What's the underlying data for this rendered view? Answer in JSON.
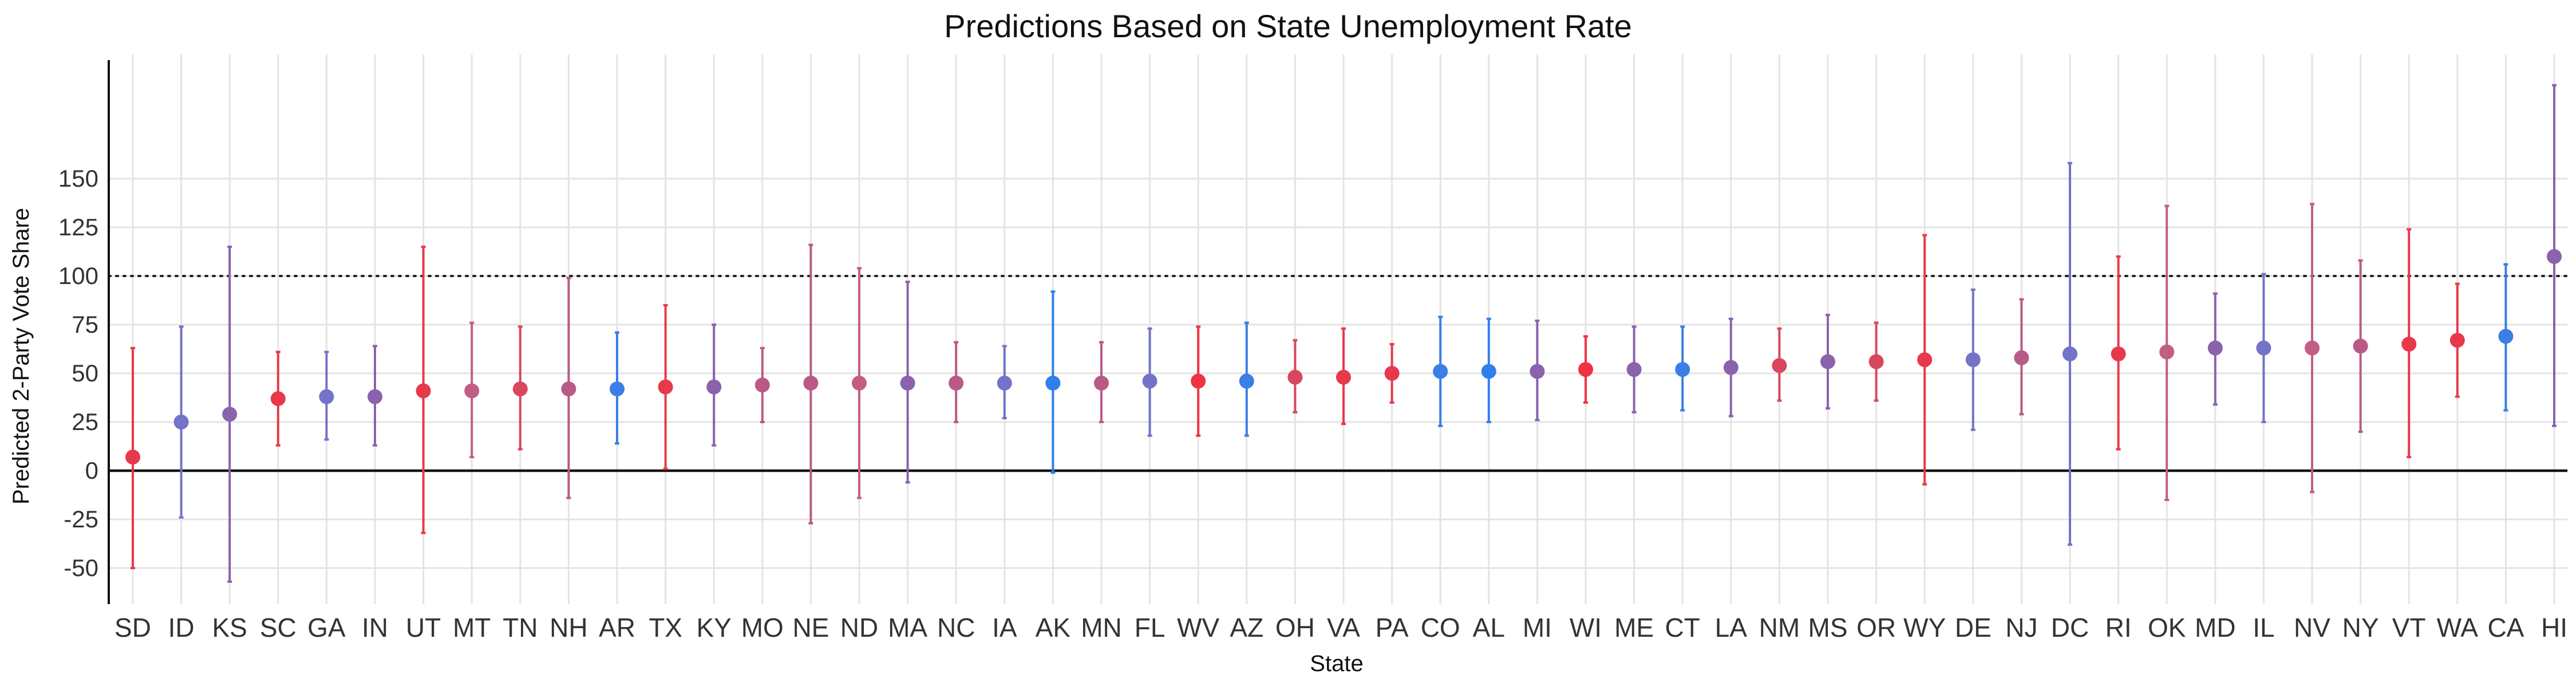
{
  "chart_data": {
    "type": "scatter",
    "title": "Predictions Based on State Unemployment Rate",
    "xlabel": "State",
    "ylabel": "Predicted 2-Party Vote Share",
    "ylim": [
      -60,
      210
    ],
    "yticks": [
      -50,
      -25,
      0,
      25,
      50,
      75,
      100,
      125,
      150
    ],
    "reference_lines": [
      {
        "y": 0,
        "style": "solid"
      },
      {
        "y": 100,
        "style": "dotted"
      }
    ],
    "grid": true,
    "legend": "none",
    "points": [
      {
        "state": "SD",
        "y": 7,
        "lower": -50,
        "upper": 63,
        "color": "#e8394a"
      },
      {
        "state": "ID",
        "y": 25,
        "lower": -24,
        "upper": 74,
        "color": "#7373c9"
      },
      {
        "state": "KS",
        "y": 29,
        "lower": -57,
        "upper": 115,
        "color": "#8a62ad"
      },
      {
        "state": "SC",
        "y": 37,
        "lower": 13,
        "upper": 61,
        "color": "#e8394a"
      },
      {
        "state": "GA",
        "y": 38,
        "lower": 16,
        "upper": 61,
        "color": "#7373c9"
      },
      {
        "state": "IN",
        "y": 38,
        "lower": 13,
        "upper": 64,
        "color": "#8a62ad"
      },
      {
        "state": "UT",
        "y": 41,
        "lower": -32,
        "upper": 115,
        "color": "#e8394a"
      },
      {
        "state": "MT",
        "y": 41,
        "lower": 7,
        "upper": 76,
        "color": "#c25e84"
      },
      {
        "state": "TN",
        "y": 42,
        "lower": 11,
        "upper": 74,
        "color": "#d8475e"
      },
      {
        "state": "NH",
        "y": 42,
        "lower": -14,
        "upper": 99,
        "color": "#b95a86"
      },
      {
        "state": "AR",
        "y": 42,
        "lower": 14,
        "upper": 71,
        "color": "#3a7ee6"
      },
      {
        "state": "TX",
        "y": 43,
        "lower": 1,
        "upper": 85,
        "color": "#e8394a"
      },
      {
        "state": "KY",
        "y": 43,
        "lower": 13,
        "upper": 75,
        "color": "#8a62ad"
      },
      {
        "state": "MO",
        "y": 44,
        "lower": 25,
        "upper": 63,
        "color": "#b95a86"
      },
      {
        "state": "NE",
        "y": 45,
        "lower": -27,
        "upper": 116,
        "color": "#b95a86"
      },
      {
        "state": "ND",
        "y": 45,
        "lower": -14,
        "upper": 104,
        "color": "#c25e84"
      },
      {
        "state": "MA",
        "y": 45,
        "lower": -6,
        "upper": 97,
        "color": "#8a62ad"
      },
      {
        "state": "NC",
        "y": 45,
        "lower": 25,
        "upper": 66,
        "color": "#b95a86"
      },
      {
        "state": "IA",
        "y": 45,
        "lower": 27,
        "upper": 64,
        "color": "#7373c9"
      },
      {
        "state": "AK",
        "y": 45,
        "lower": -1,
        "upper": 92,
        "color": "#2f80ed"
      },
      {
        "state": "MN",
        "y": 45,
        "lower": 25,
        "upper": 66,
        "color": "#b95a86"
      },
      {
        "state": "FL",
        "y": 46,
        "lower": 18,
        "upper": 73,
        "color": "#7373c9"
      },
      {
        "state": "WV",
        "y": 46,
        "lower": 18,
        "upper": 74,
        "color": "#ef3344"
      },
      {
        "state": "AZ",
        "y": 46,
        "lower": 18,
        "upper": 76,
        "color": "#3a7ee6"
      },
      {
        "state": "OH",
        "y": 48,
        "lower": 30,
        "upper": 67,
        "color": "#d8475e"
      },
      {
        "state": "VA",
        "y": 48,
        "lower": 24,
        "upper": 73,
        "color": "#e8394a"
      },
      {
        "state": "PA",
        "y": 50,
        "lower": 35,
        "upper": 65,
        "color": "#e8394a"
      },
      {
        "state": "CO",
        "y": 51,
        "lower": 23,
        "upper": 79,
        "color": "#3a7ee6"
      },
      {
        "state": "AL",
        "y": 51,
        "lower": 25,
        "upper": 78,
        "color": "#2f80ed"
      },
      {
        "state": "MI",
        "y": 51,
        "lower": 26,
        "upper": 77,
        "color": "#8a62ad"
      },
      {
        "state": "WI",
        "y": 52,
        "lower": 35,
        "upper": 69,
        "color": "#ef3344"
      },
      {
        "state": "ME",
        "y": 52,
        "lower": 30,
        "upper": 74,
        "color": "#8a62ad"
      },
      {
        "state": "CT",
        "y": 52,
        "lower": 31,
        "upper": 74,
        "color": "#3a7ee6"
      },
      {
        "state": "LA",
        "y": 53,
        "lower": 28,
        "upper": 78,
        "color": "#8a62ad"
      },
      {
        "state": "NM",
        "y": 54,
        "lower": 36,
        "upper": 73,
        "color": "#d8475e"
      },
      {
        "state": "MS",
        "y": 56,
        "lower": 32,
        "upper": 80,
        "color": "#8a62ad"
      },
      {
        "state": "OR",
        "y": 56,
        "lower": 36,
        "upper": 76,
        "color": "#d8475e"
      },
      {
        "state": "WY",
        "y": 57,
        "lower": -7,
        "upper": 121,
        "color": "#e8394a"
      },
      {
        "state": "DE",
        "y": 57,
        "lower": 21,
        "upper": 93,
        "color": "#7373c9"
      },
      {
        "state": "NJ",
        "y": 58,
        "lower": 29,
        "upper": 88,
        "color": "#b95a86"
      },
      {
        "state": "DC",
        "y": 60,
        "lower": -38,
        "upper": 158,
        "color": "#7373c9"
      },
      {
        "state": "RI",
        "y": 60,
        "lower": 11,
        "upper": 110,
        "color": "#e8394a"
      },
      {
        "state": "OK",
        "y": 61,
        "lower": -15,
        "upper": 136,
        "color": "#c25e84"
      },
      {
        "state": "MD",
        "y": 63,
        "lower": 34,
        "upper": 91,
        "color": "#8a62ad"
      },
      {
        "state": "IL",
        "y": 63,
        "lower": 25,
        "upper": 101,
        "color": "#7373c9"
      },
      {
        "state": "NV",
        "y": 63,
        "lower": -11,
        "upper": 137,
        "color": "#c25e84"
      },
      {
        "state": "NY",
        "y": 64,
        "lower": 20,
        "upper": 108,
        "color": "#b95a86"
      },
      {
        "state": "VT",
        "y": 65,
        "lower": 7,
        "upper": 124,
        "color": "#e8394a"
      },
      {
        "state": "WA",
        "y": 67,
        "lower": 38,
        "upper": 96,
        "color": "#e8394a"
      },
      {
        "state": "CA",
        "y": 69,
        "lower": 31,
        "upper": 106,
        "color": "#3a7ee6"
      },
      {
        "state": "HI",
        "y": 110,
        "lower": 23,
        "upper": 198,
        "color": "#8a62ad"
      }
    ]
  }
}
